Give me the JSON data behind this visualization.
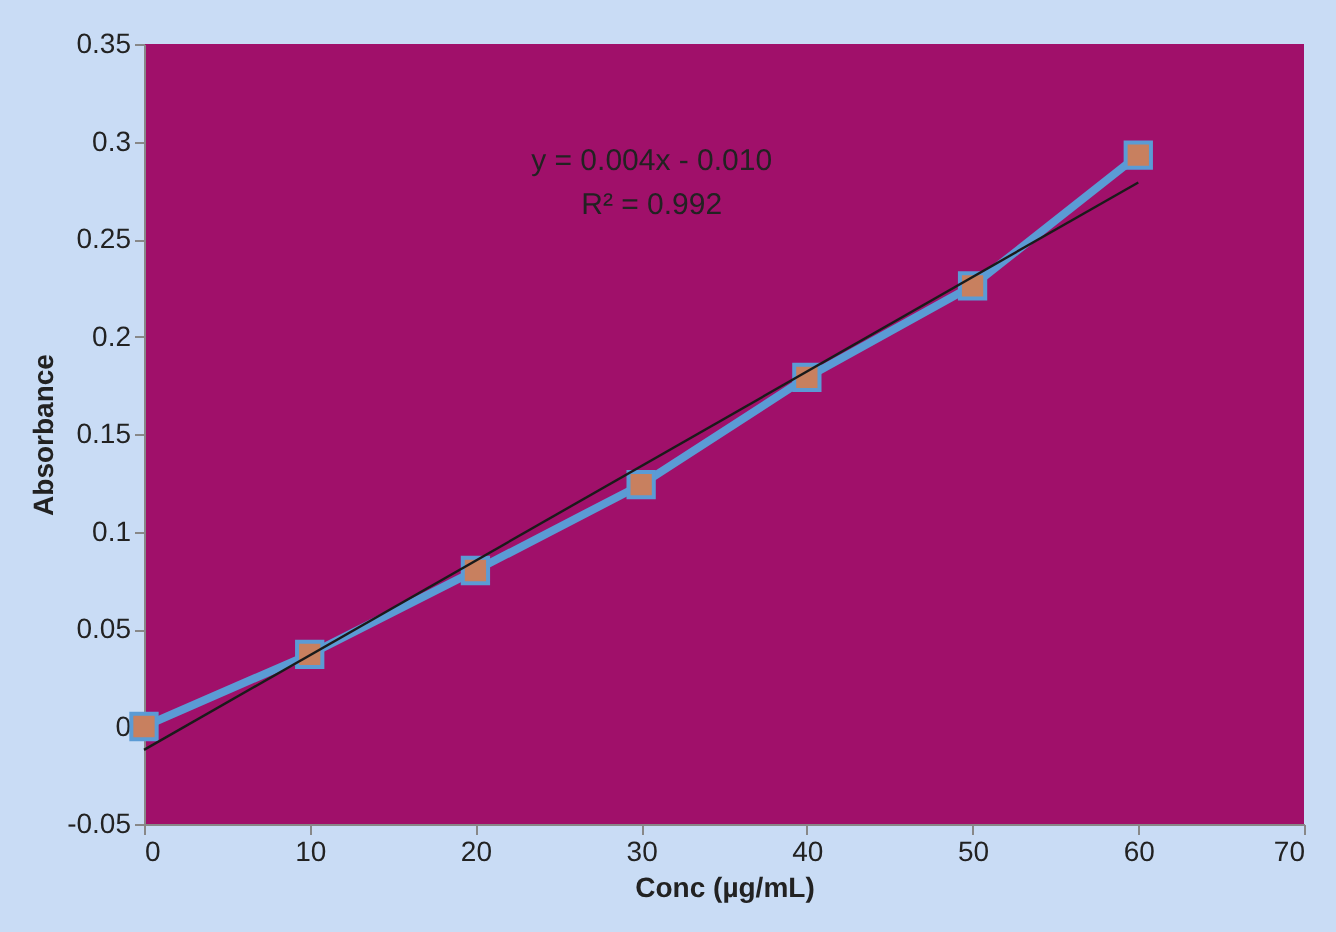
{
  "chart_data": {
    "type": "line",
    "xlabel": "Conc (µg/mL)",
    "ylabel": "Absorbance",
    "x": [
      0,
      10,
      20,
      30,
      40,
      50,
      60
    ],
    "series": [
      {
        "color": "#5b9bd5",
        "marker": "square",
        "values": [
          0.0,
          0.037,
          0.08,
          0.124,
          0.179,
          0.226,
          0.293
        ]
      },
      {
        "color": "#1a1a1a",
        "marker": "none",
        "x": [
          0,
          60
        ],
        "values": [
          -0.012,
          0.279
        ]
      }
    ],
    "annotations": [
      "y = 0.004x - 0.010",
      "R² = 0.992"
    ],
    "xlim": [
      0,
      70
    ],
    "xticks": [
      0,
      10,
      20,
      30,
      40,
      50,
      60,
      70
    ],
    "ylim": [
      -0.05,
      0.35
    ],
    "yticks": [
      -0.05,
      0,
      0.05,
      0.1,
      0.15,
      0.2,
      0.25,
      0.3,
      0.35
    ],
    "grid": false
  }
}
